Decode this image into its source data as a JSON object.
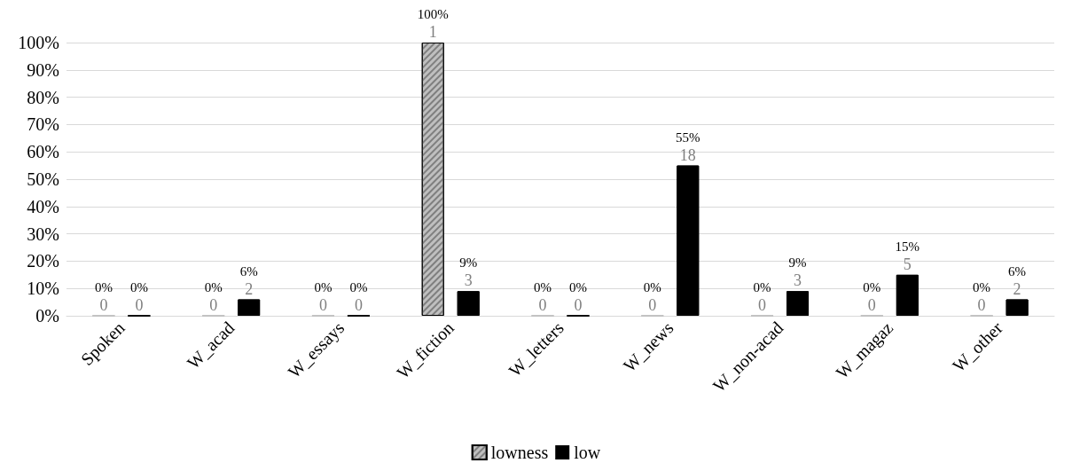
{
  "chart_data": {
    "type": "bar",
    "categories": [
      "Spoken",
      "W_acad",
      "W_essays",
      "W_fiction",
      "W_letters",
      "W_news",
      "W_non-acad",
      "W_magaz",
      "W_other"
    ],
    "series": [
      {
        "name": "lowness",
        "color": "#bfbfbf",
        "values": [
          0,
          0,
          0,
          100,
          0,
          0,
          0,
          0,
          0
        ],
        "value_labels": [
          "0%\n0",
          "0%\n0",
          "0%\n0",
          "100%\n1",
          "0%\n0",
          "0%\n0",
          "0%\n0",
          "0%\n0",
          "0%\n0"
        ]
      },
      {
        "name": "low",
        "color": "#000000",
        "values": [
          0,
          6,
          0,
          9,
          0,
          55,
          9,
          15,
          6
        ],
        "value_labels": [
          "0%\n0",
          "6%\n2",
          "0%\n0",
          "9%\n3",
          "0%\n0",
          "55%\n18",
          "9%\n3",
          "15%\n5",
          "6%\n2"
        ]
      }
    ],
    "ylim": [
      0,
      100
    ],
    "yticks": [
      {
        "value": 0,
        "label": "0%"
      },
      {
        "value": 10,
        "label": "10%"
      },
      {
        "value": 20,
        "label": "20%"
      },
      {
        "value": 30,
        "label": "30%"
      },
      {
        "value": 40,
        "label": "40%"
      },
      {
        "value": 50,
        "label": "50%"
      },
      {
        "value": 60,
        "label": "60%"
      },
      {
        "value": 70,
        "label": "70%"
      },
      {
        "value": 80,
        "label": "80%"
      },
      {
        "value": 90,
        "label": "90%"
      },
      {
        "value": 100,
        "label": "100%"
      }
    ],
    "grid": "y",
    "legend": "bottom"
  }
}
